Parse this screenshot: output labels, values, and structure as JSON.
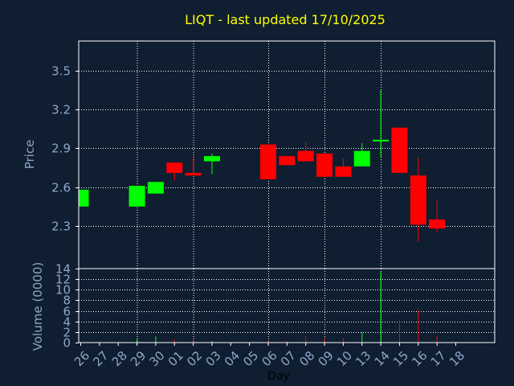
{
  "chart_data": {
    "type": "candlestick",
    "title": "LIQT - last updated 17/10/2025",
    "xlabel": "Day",
    "x_ticks": [
      "26",
      "27",
      "28",
      "29",
      "30",
      "01",
      "02",
      "03",
      "04",
      "05",
      "06",
      "07",
      "08",
      "09",
      "10",
      "13",
      "14",
      "15",
      "16",
      "17",
      "18"
    ],
    "price_panel": {
      "ylabel": "Price",
      "yticks": [
        2.3,
        2.6,
        2.9,
        3.2,
        3.5
      ],
      "ylim": [
        1.97,
        3.73
      ],
      "candles": [
        {
          "day": "26",
          "open": 2.45,
          "high": 2.58,
          "low": 2.45,
          "close": 2.58
        },
        {
          "day": "29",
          "open": 2.45,
          "high": 2.61,
          "low": 2.45,
          "close": 2.61
        },
        {
          "day": "30",
          "open": 2.55,
          "high": 2.64,
          "low": 2.55,
          "close": 2.64
        },
        {
          "day": "01",
          "open": 2.79,
          "high": 2.79,
          "low": 2.65,
          "close": 2.71
        },
        {
          "day": "02",
          "open": 2.71,
          "high": 2.84,
          "low": 2.69,
          "close": 2.69
        },
        {
          "day": "03",
          "open": 2.8,
          "high": 2.86,
          "low": 2.7,
          "close": 2.84
        },
        {
          "day": "06",
          "open": 2.93,
          "high": 2.93,
          "low": 2.66,
          "close": 2.66
        },
        {
          "day": "07",
          "open": 2.84,
          "high": 2.84,
          "low": 2.77,
          "close": 2.77
        },
        {
          "day": "08",
          "open": 2.88,
          "high": 2.95,
          "low": 2.8,
          "close": 2.8
        },
        {
          "day": "09",
          "open": 2.86,
          "high": 2.86,
          "low": 2.68,
          "close": 2.68
        },
        {
          "day": "10",
          "open": 2.76,
          "high": 2.82,
          "low": 2.68,
          "close": 2.68
        },
        {
          "day": "13",
          "open": 2.76,
          "high": 2.94,
          "low": 2.76,
          "close": 2.88
        },
        {
          "day": "14",
          "open": 2.95,
          "high": 3.35,
          "low": 2.83,
          "close": 2.96
        },
        {
          "day": "15",
          "open": 3.06,
          "high": 3.06,
          "low": 2.71,
          "close": 2.71
        },
        {
          "day": "16",
          "open": 2.69,
          "high": 2.83,
          "low": 2.18,
          "close": 2.31
        },
        {
          "day": "17",
          "open": 2.35,
          "high": 2.5,
          "low": 2.25,
          "close": 2.28
        }
      ]
    },
    "volume_panel": {
      "ylabel": "Volume (0000)",
      "yticks": [
        0,
        2,
        4,
        6,
        8,
        10,
        12,
        14
      ],
      "ylim": [
        0,
        14
      ],
      "volumes": [
        {
          "day": "26",
          "value": 0.1,
          "direction": "up"
        },
        {
          "day": "29",
          "value": 0.8,
          "direction": "up"
        },
        {
          "day": "30",
          "value": 1.2,
          "direction": "up"
        },
        {
          "day": "01",
          "value": 0.5,
          "direction": "down"
        },
        {
          "day": "02",
          "value": 0.5,
          "direction": "down"
        },
        {
          "day": "03",
          "value": 0.3,
          "direction": "up"
        },
        {
          "day": "06",
          "value": 0.4,
          "direction": "down"
        },
        {
          "day": "07",
          "value": 0.3,
          "direction": "down"
        },
        {
          "day": "08",
          "value": 1.3,
          "direction": "down"
        },
        {
          "day": "09",
          "value": 0.8,
          "direction": "down"
        },
        {
          "day": "10",
          "value": 0.9,
          "direction": "down"
        },
        {
          "day": "13",
          "value": 2.0,
          "direction": "up"
        },
        {
          "day": "14",
          "value": 13.5,
          "direction": "up"
        },
        {
          "day": "15",
          "value": 4.3,
          "direction": "down"
        },
        {
          "day": "16",
          "value": 6.3,
          "direction": "down"
        },
        {
          "day": "17",
          "value": 1.3,
          "direction": "down"
        }
      ]
    },
    "grid": true,
    "colors": {
      "background": "#0f1e30",
      "up": "#00ff00",
      "down": "#ff0000",
      "title": "#ffff00",
      "axis_text": "#8ea6c8",
      "grid": "#ffffff",
      "frame": "#ffffff"
    }
  }
}
